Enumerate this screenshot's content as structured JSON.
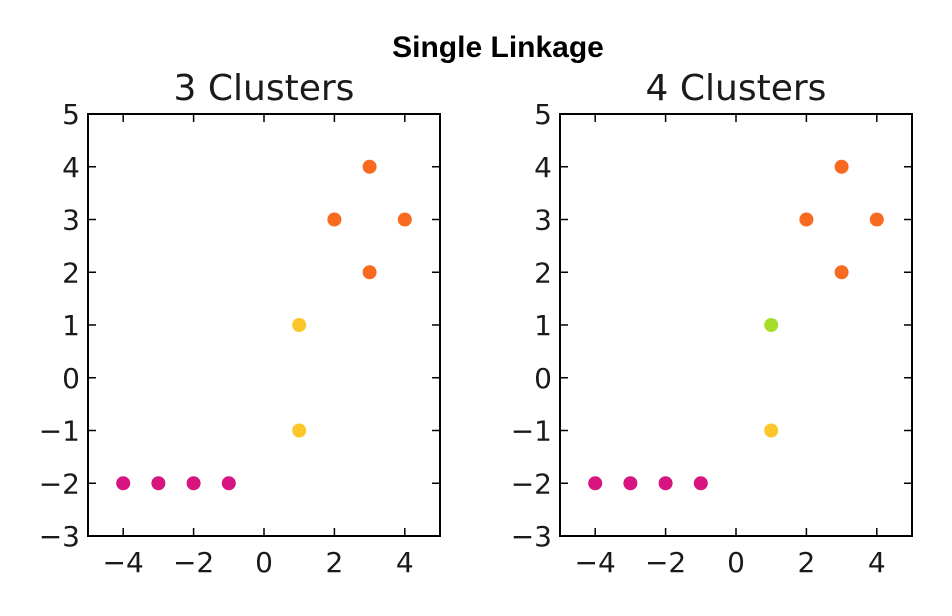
{
  "suptitle": "Single Linkage",
  "chart_data": [
    {
      "type": "scatter",
      "title": "3 Clusters",
      "xlim": [
        -5,
        5
      ],
      "ylim": [
        -3,
        5
      ],
      "xticks": [
        -4,
        -2,
        0,
        2,
        4
      ],
      "yticks": [
        -3,
        -2,
        -1,
        0,
        1,
        2,
        3,
        4,
        5
      ],
      "xtick_labels": [
        "−4",
        "−2",
        "0",
        "2",
        "4"
      ],
      "ytick_labels": [
        "−3",
        "−2",
        "−1",
        "0",
        "1",
        "2",
        "3",
        "4",
        "5"
      ],
      "points": [
        {
          "x": -4,
          "y": -2,
          "color": "#d6157f"
        },
        {
          "x": -3,
          "y": -2,
          "color": "#d6157f"
        },
        {
          "x": -2,
          "y": -2,
          "color": "#d6157f"
        },
        {
          "x": -1,
          "y": -2,
          "color": "#d6157f"
        },
        {
          "x": 1,
          "y": -1,
          "color": "#fbc62a"
        },
        {
          "x": 1,
          "y": 1,
          "color": "#fbc62a"
        },
        {
          "x": 3,
          "y": 2,
          "color": "#f76a20"
        },
        {
          "x": 2,
          "y": 3,
          "color": "#f76a20"
        },
        {
          "x": 4,
          "y": 3,
          "color": "#f76a20"
        },
        {
          "x": 3,
          "y": 4,
          "color": "#f76a20"
        }
      ],
      "grid": false
    },
    {
      "type": "scatter",
      "title": "4 Clusters",
      "xlim": [
        -5,
        5
      ],
      "ylim": [
        -3,
        5
      ],
      "xticks": [
        -4,
        -2,
        0,
        2,
        4
      ],
      "yticks": [
        -3,
        -2,
        -1,
        0,
        1,
        2,
        3,
        4,
        5
      ],
      "xtick_labels": [
        "−4",
        "−2",
        "0",
        "2",
        "4"
      ],
      "ytick_labels": [
        "−3",
        "−2",
        "−1",
        "0",
        "1",
        "2",
        "3",
        "4",
        "5"
      ],
      "points": [
        {
          "x": -4,
          "y": -2,
          "color": "#d6157f"
        },
        {
          "x": -3,
          "y": -2,
          "color": "#d6157f"
        },
        {
          "x": -2,
          "y": -2,
          "color": "#d6157f"
        },
        {
          "x": -1,
          "y": -2,
          "color": "#d6157f"
        },
        {
          "x": 1,
          "y": -1,
          "color": "#fbc62a"
        },
        {
          "x": 1,
          "y": 1,
          "color": "#a5dd2a"
        },
        {
          "x": 3,
          "y": 2,
          "color": "#f76a20"
        },
        {
          "x": 2,
          "y": 3,
          "color": "#f76a20"
        },
        {
          "x": 4,
          "y": 3,
          "color": "#f76a20"
        },
        {
          "x": 3,
          "y": 4,
          "color": "#f76a20"
        }
      ],
      "grid": false
    }
  ]
}
